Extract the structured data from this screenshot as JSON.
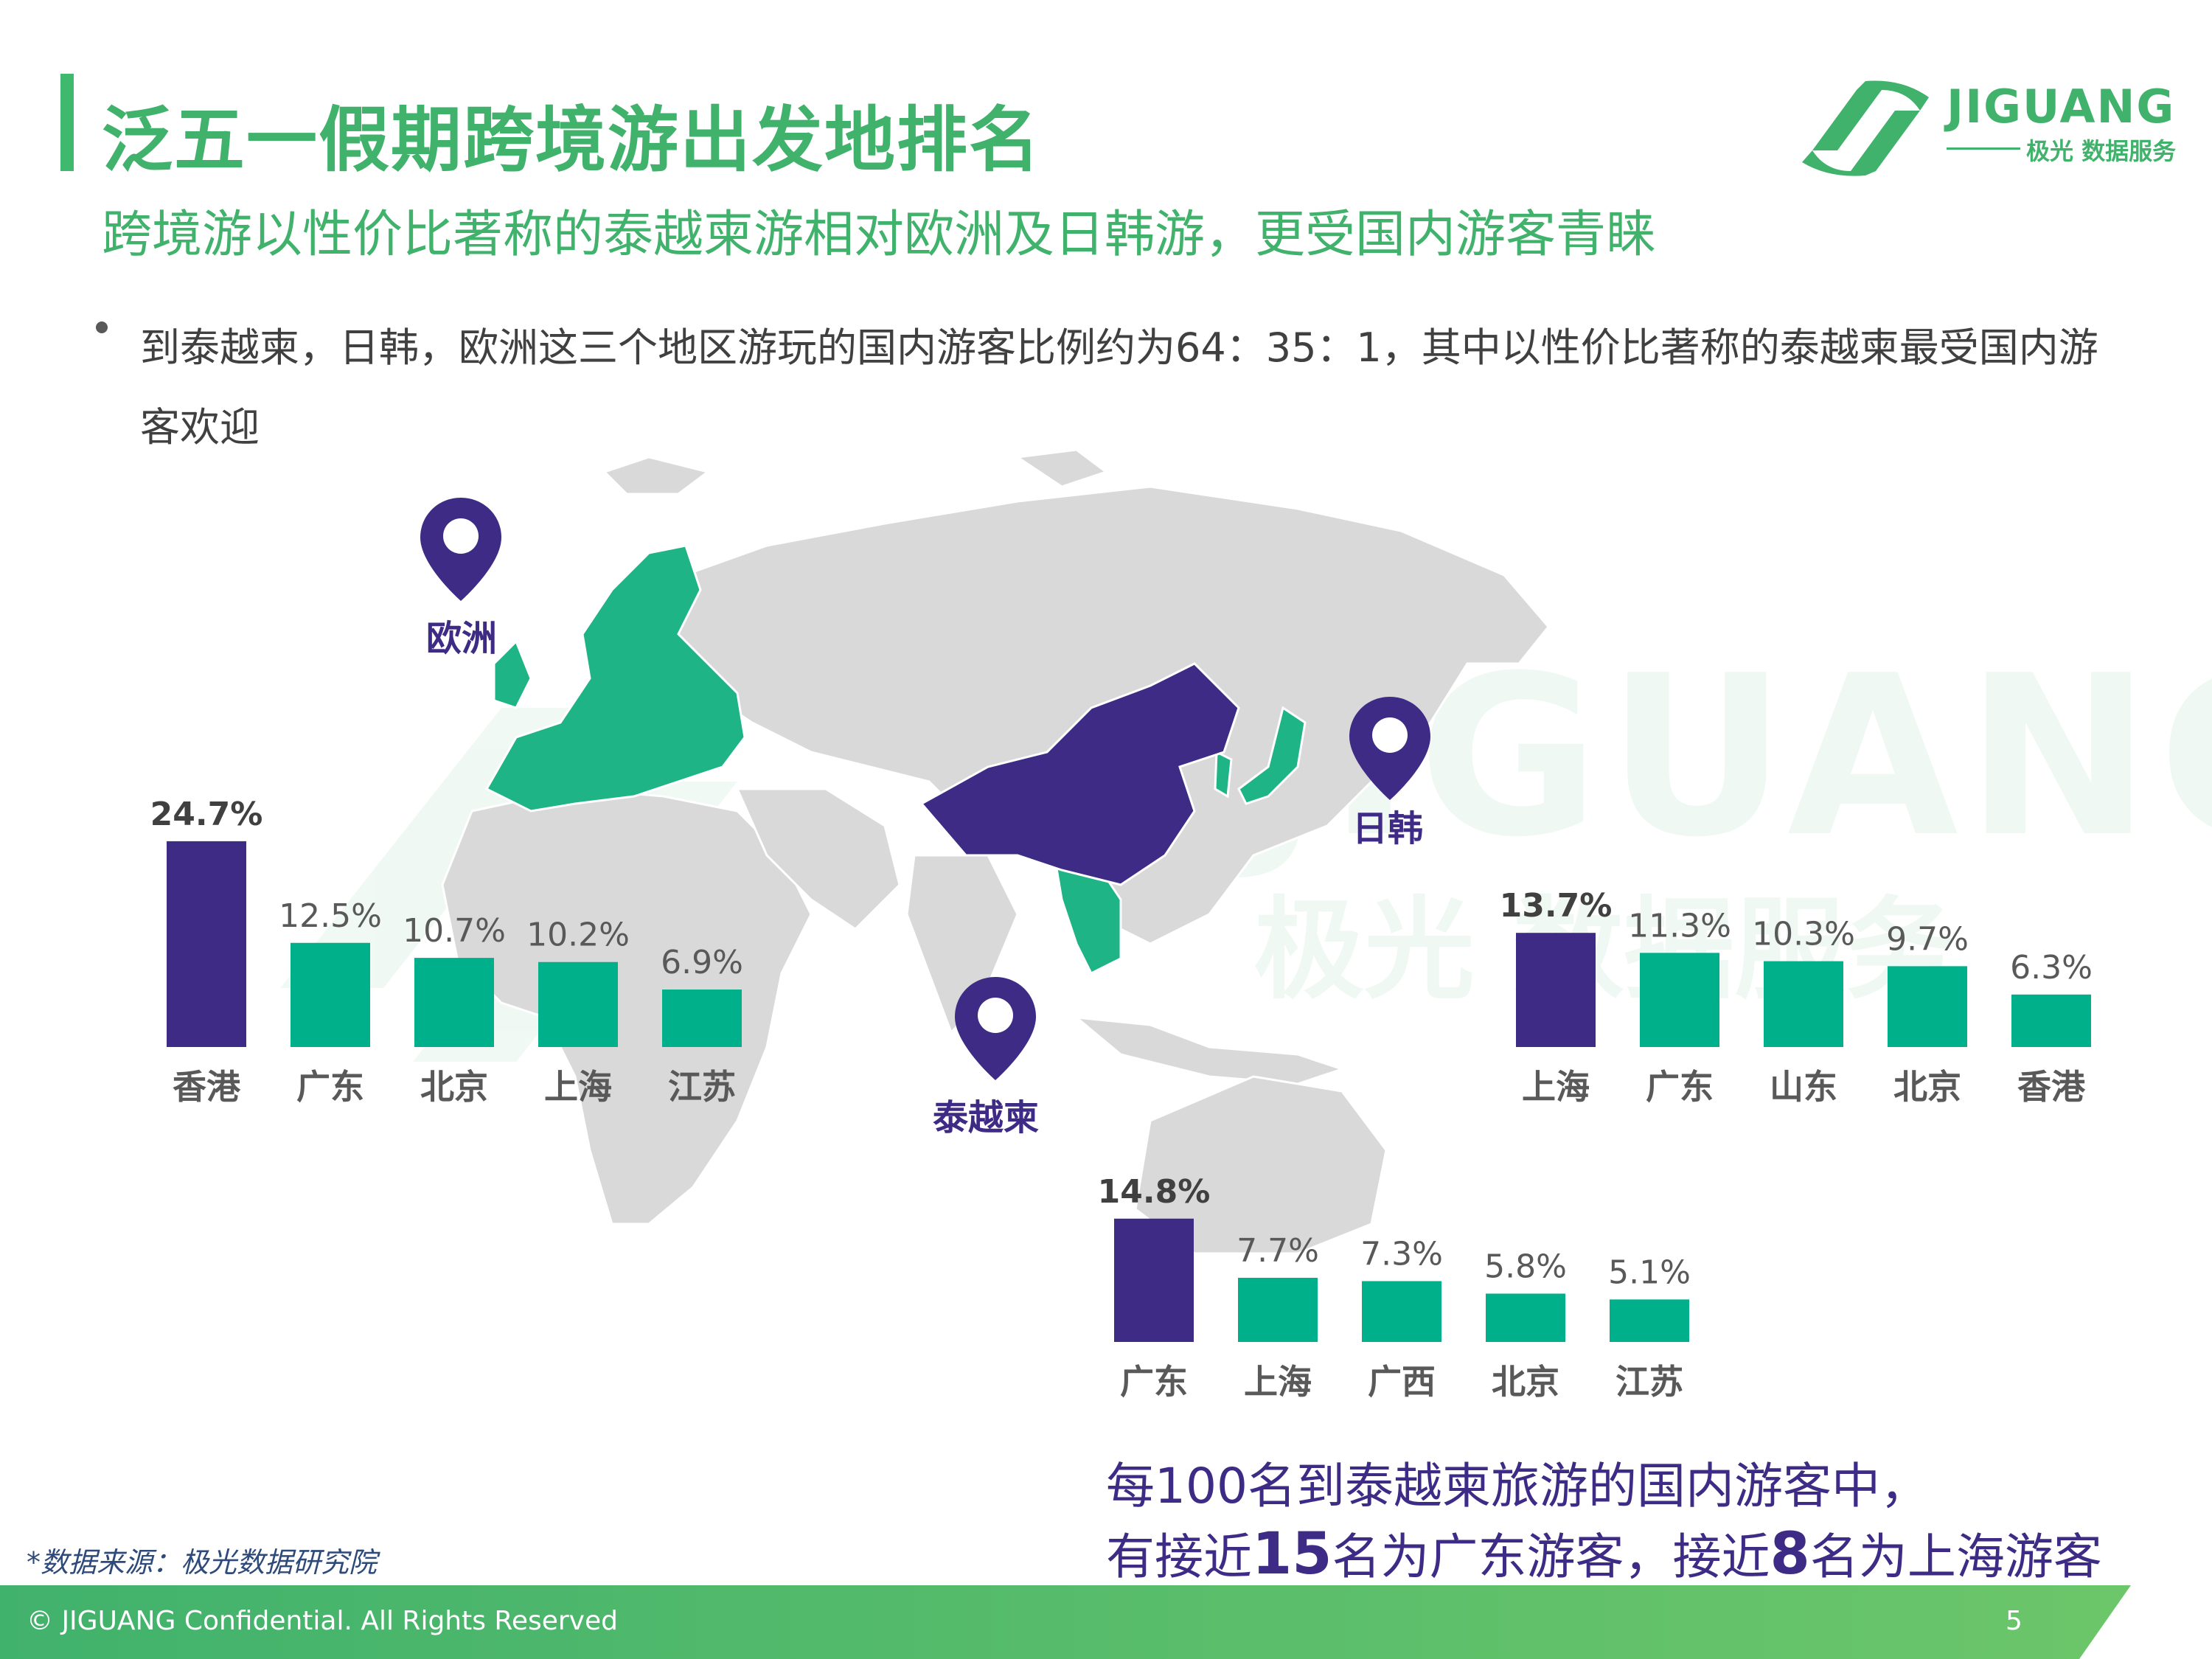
{
  "header": {
    "title": "泛五一假期跨境游出发地排名",
    "subtitle": "跨境游以性价比著称的泰越柬游相对欧洲及日韩游，更受国内游客青睐",
    "bullet": "到泰越柬，日韩，欧洲这三个地区游玩的国内游客比例约为64：35：1，其中以性价比著称的泰越柬最受国内游客欢迎"
  },
  "logo": {
    "name": "JIGUANG",
    "sub": "极光 数据服务"
  },
  "watermark": {
    "main": "JIGUANG",
    "sub": "极光 数据服务"
  },
  "pins": {
    "europe": "欧洲",
    "japan_korea": "日韩",
    "sea": "泰越柬"
  },
  "colors": {
    "highlight": "#3d2b86",
    "bar": "#00b08a",
    "europe": "#1fb486",
    "china": "#3d2b86",
    "land": "#d9d9d9",
    "brand": "#41b26c"
  },
  "note": {
    "line1": "每100名到泰越柬旅游的国内游客中，",
    "line2_a": "有接近",
    "line2_b": "15",
    "line2_c": "名为广东游客，接近",
    "line2_d": "8",
    "line2_e": "名为上海游客"
  },
  "source": "*数据来源：极光数据研究院",
  "footer": {
    "copyright": "© JIGUANG Confidential. All Rights Reserved",
    "page": "5"
  },
  "chart_data": [
    {
      "type": "bar",
      "region": "欧洲",
      "categories": [
        "香港",
        "广东",
        "北京",
        "上海",
        "江苏"
      ],
      "values": [
        24.7,
        12.5,
        10.7,
        10.2,
        6.9
      ],
      "labels": [
        "24.7%",
        "12.5%",
        "10.7%",
        "10.2%",
        "6.9%"
      ]
    },
    {
      "type": "bar",
      "region": "日韩",
      "categories": [
        "上海",
        "广东",
        "山东",
        "北京",
        "香港"
      ],
      "values": [
        13.7,
        11.3,
        10.3,
        9.7,
        6.3
      ],
      "labels": [
        "13.7%",
        "11.3%",
        "10.3%",
        "9.7%",
        "6.3%"
      ]
    },
    {
      "type": "bar",
      "region": "泰越柬",
      "categories": [
        "广东",
        "上海",
        "广西",
        "北京",
        "江苏"
      ],
      "values": [
        14.8,
        7.7,
        7.3,
        5.8,
        5.1
      ],
      "labels": [
        "14.8%",
        "7.7%",
        "7.3%",
        "5.8%",
        "5.1%"
      ]
    }
  ]
}
